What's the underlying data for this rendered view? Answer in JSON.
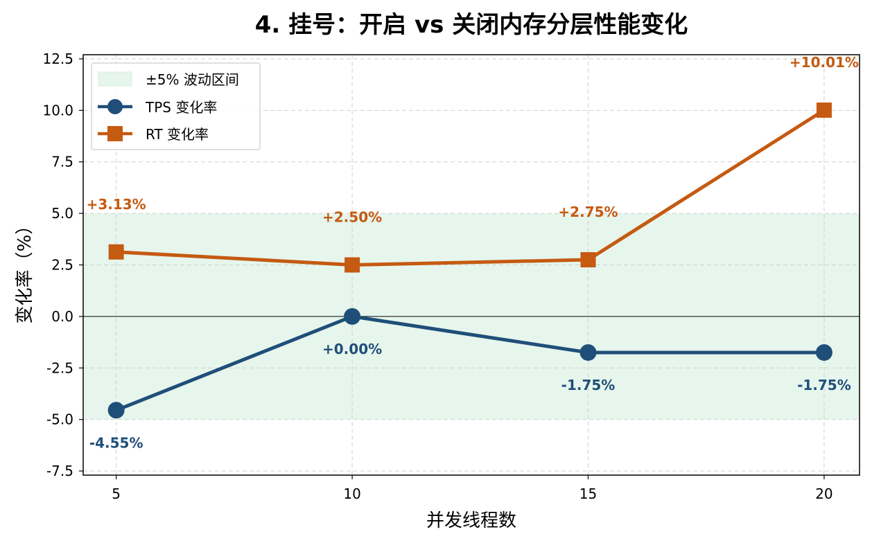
{
  "chart_data": {
    "type": "line",
    "title": "4. 挂号：开启 vs 关闭内存分层性能变化",
    "xlabel": "并发线程数",
    "ylabel": "变化率（%）",
    "x": [
      5,
      10,
      15,
      20
    ],
    "xlim": [
      4.3,
      20.75
    ],
    "ylim": [
      -7.7,
      12.7
    ],
    "xticks": [
      "5",
      "10",
      "15",
      "20"
    ],
    "yticks": [
      "12.5",
      "10.0",
      "7.5",
      "5.0",
      "2.5",
      "0.0",
      "-2.5",
      "-5.0",
      "-7.5"
    ],
    "ytick_values": [
      12.5,
      10,
      7.5,
      5,
      2.5,
      0,
      -2.5,
      -5,
      -7.5
    ],
    "band": {
      "label": "±5% 波动区间",
      "low": -5,
      "high": 5,
      "color": "#e6f6ec"
    },
    "series": [
      {
        "name": "TPS 变化率",
        "values": [
          -4.55,
          0.0,
          -1.75,
          -1.75
        ],
        "labels": [
          "-4.55%",
          "+0.00%",
          "-1.75%",
          "-1.75%"
        ],
        "color": "#1f4e79",
        "marker": "circle"
      },
      {
        "name": "RT 变化率",
        "values": [
          3.13,
          2.5,
          2.75,
          10.01
        ],
        "labels": [
          "+3.13%",
          "+2.50%",
          "+2.75%",
          "+10.01%"
        ],
        "color": "#c55a11",
        "marker": "square"
      }
    ],
    "grid": true,
    "legend_position": "top-left"
  }
}
